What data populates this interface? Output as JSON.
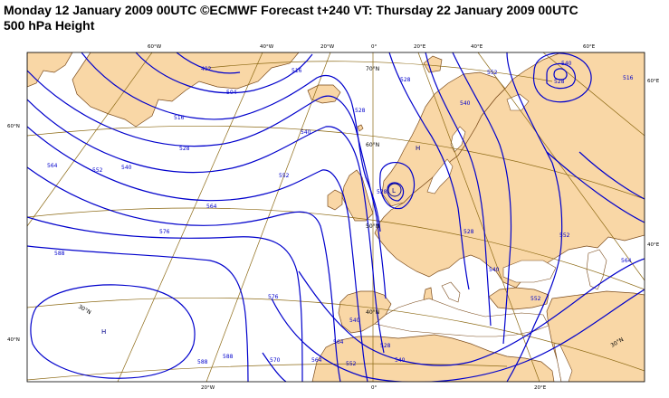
{
  "title": {
    "line1": "Monday 12 January 2009 00UTC ©ECMWF Forecast t+240 VT: Thursday 22 January 2009 00UTC",
    "line2": "500 hPa Height"
  },
  "map": {
    "projection": "polar-stereographic",
    "land_color": "#f9d7a6",
    "sea_color": "#ffffff",
    "contour_color": "#0000cc",
    "graticule_color": "#8c6914",
    "coast_color": "#7a4a1a",
    "top_lon_labels": [
      "60°W",
      "40°W",
      "20°W",
      "0°",
      "20°E",
      "40°E",
      "60°E"
    ],
    "bottom_lon_labels": [
      "20°W",
      "0°",
      "20°E"
    ],
    "left_lat_labels": [
      "60°N",
      "40°N"
    ],
    "right_lat_labels": [
      "60°E",
      "40°E"
    ],
    "interior_lat_labels": [
      "70°N",
      "60°N",
      "50°N",
      "40°N",
      "30°N",
      "30°N"
    ],
    "contour_labels": [
      "492",
      "504",
      "516",
      "528",
      "540",
      "552",
      "564",
      "576",
      "588",
      "516",
      "528",
      "540",
      "552",
      "564",
      "576",
      "588",
      "528",
      "540",
      "552",
      "540",
      "528",
      "516",
      "528",
      "540",
      "552",
      "564",
      "552",
      "540",
      "528",
      "540",
      "552",
      "564",
      "570",
      "588",
      "564",
      "528"
    ],
    "centres": [
      {
        "symbol": "H",
        "kind": "high"
      },
      {
        "symbol": "L",
        "kind": "low"
      },
      {
        "symbol": "H",
        "kind": "high"
      }
    ]
  }
}
